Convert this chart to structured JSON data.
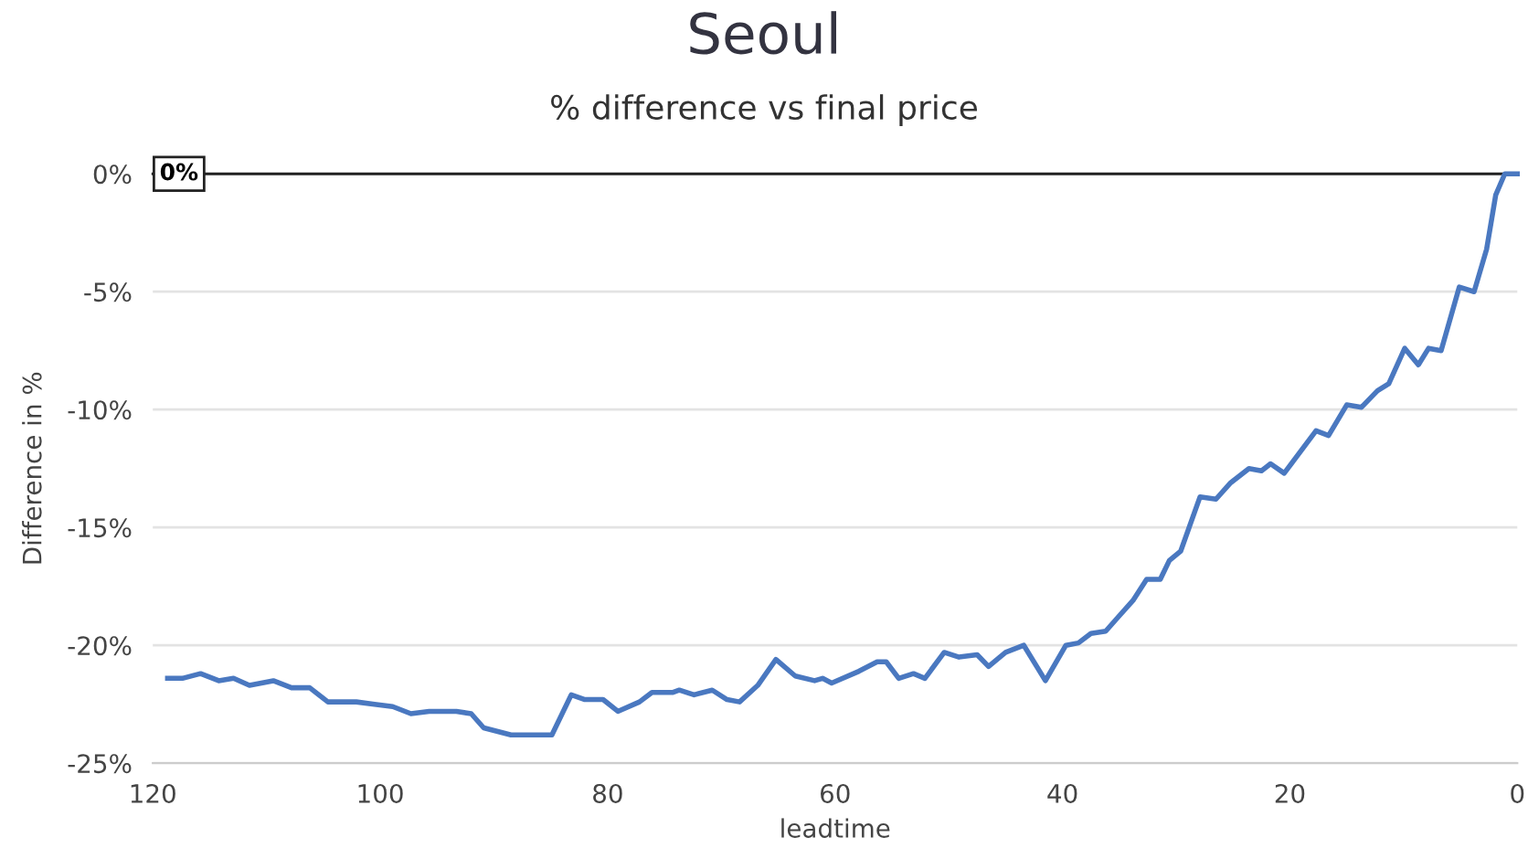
{
  "chart_data": {
    "type": "line",
    "title": "Seoul",
    "subtitle": "% difference vs final price",
    "xlabel": "leadtime",
    "ylabel": "Difference in %",
    "xlim": [
      120,
      0
    ],
    "xticks": [
      120,
      100,
      80,
      60,
      40,
      20,
      0
    ],
    "ylim": [
      -25,
      0
    ],
    "yticks": [
      {
        "value": 0,
        "label": "0%"
      },
      {
        "value": -5,
        "label": "-5%"
      },
      {
        "value": -10,
        "label": "-10%"
      },
      {
        "value": -15,
        "label": "-15%"
      },
      {
        "value": -20,
        "label": "-20%"
      },
      {
        "value": -25,
        "label": "-25%"
      }
    ],
    "grid": "y",
    "legend": false,
    "ref_lines": [
      {
        "axis": "y",
        "value": 0,
        "label": "0%",
        "color": "#222222"
      }
    ],
    "series": [
      {
        "color": "#4a78c0",
        "x": [
          118.7,
          117.4,
          115.8,
          114.2,
          112.9,
          111.5,
          109.4,
          107.8,
          106.2,
          104.6,
          102.1,
          100.5,
          98.9,
          97.3,
          95.7,
          93.3,
          92.0,
          90.9,
          88.5,
          86.1,
          84.9,
          83.2,
          82.0,
          80.4,
          79.1,
          77.2,
          76.1,
          74.3,
          73.7,
          72.4,
          70.8,
          69.5,
          68.4,
          66.8,
          65.2,
          63.5,
          61.8,
          61.1,
          60.3,
          57.9,
          56.3,
          55.5,
          54.4,
          53.1,
          52.1,
          50.4,
          49.1,
          47.5,
          46.5,
          45.0,
          43.4,
          41.5,
          39.7,
          38.6,
          37.5,
          36.2,
          35.1,
          33.8,
          32.6,
          31.4,
          30.6,
          29.6,
          27.9,
          26.5,
          25.2,
          23.6,
          22.5,
          21.7,
          20.5,
          17.7,
          16.6,
          15.0,
          13.7,
          12.3,
          11.3,
          9.9,
          8.7,
          7.8,
          6.7,
          5.1,
          3.8,
          2.7,
          1.9,
          1.1,
          0.0
        ],
        "values": [
          -21.4,
          -21.4,
          -21.2,
          -21.5,
          -21.4,
          -21.7,
          -21.5,
          -21.8,
          -21.8,
          -22.4,
          -22.4,
          -22.5,
          -22.6,
          -22.9,
          -22.8,
          -22.8,
          -22.9,
          -23.5,
          -23.8,
          -23.8,
          -23.8,
          -22.1,
          -22.3,
          -22.3,
          -22.8,
          -22.4,
          -22.0,
          -22.0,
          -21.9,
          -22.1,
          -21.9,
          -22.3,
          -22.4,
          -21.7,
          -20.6,
          -21.3,
          -21.5,
          -21.4,
          -21.6,
          -21.1,
          -20.7,
          -20.7,
          -21.4,
          -21.2,
          -21.4,
          -20.3,
          -20.5,
          -20.4,
          -20.9,
          -20.3,
          -20.0,
          -21.5,
          -20.0,
          -19.9,
          -19.5,
          -19.4,
          -18.8,
          -18.1,
          -17.2,
          -17.2,
          -16.4,
          -16.0,
          -13.7,
          -13.8,
          -13.1,
          -12.5,
          -12.6,
          -12.3,
          -12.7,
          -10.9,
          -11.1,
          -9.8,
          -9.9,
          -9.2,
          -8.9,
          -7.4,
          -8.1,
          -7.4,
          -7.5,
          -4.8,
          -5.0,
          -3.2,
          -0.9,
          0,
          0
        ]
      }
    ]
  }
}
